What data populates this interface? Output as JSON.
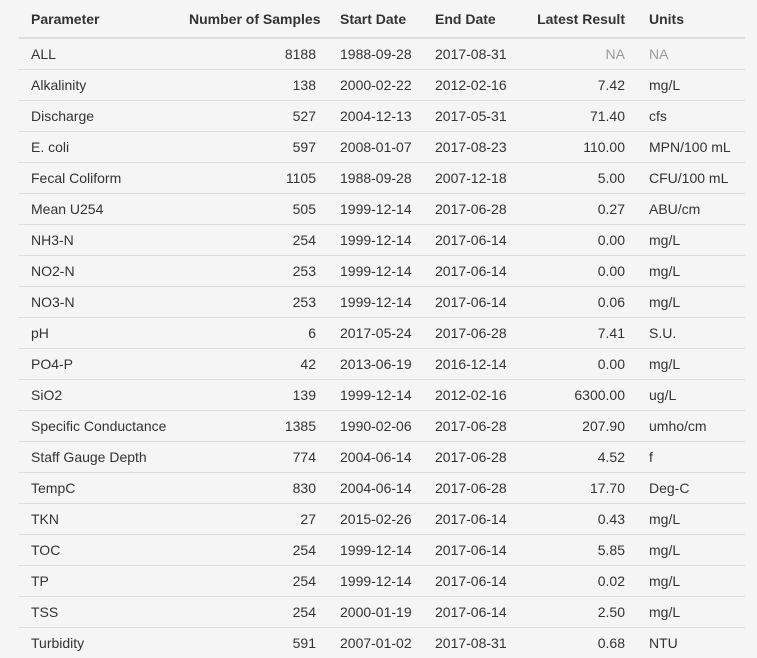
{
  "table": {
    "headers": {
      "parameter": "Parameter",
      "samples": "Number of Samples",
      "start": "Start Date",
      "end": "End Date",
      "latest": "Latest Result",
      "units": "Units"
    },
    "rows": [
      {
        "parameter": "ALL",
        "samples": "8188",
        "start": "1988-09-28",
        "end": "2017-08-31",
        "latest": "NA",
        "units": "NA"
      },
      {
        "parameter": "Alkalinity",
        "samples": "138",
        "start": "2000-02-22",
        "end": "2012-02-16",
        "latest": "7.42",
        "units": "mg/L"
      },
      {
        "parameter": "Discharge",
        "samples": "527",
        "start": "2004-12-13",
        "end": "2017-05-31",
        "latest": "71.40",
        "units": "cfs"
      },
      {
        "parameter": "E. coli",
        "samples": "597",
        "start": "2008-01-07",
        "end": "2017-08-23",
        "latest": "110.00",
        "units": "MPN/100 mL"
      },
      {
        "parameter": "Fecal Coliform",
        "samples": "1105",
        "start": "1988-09-28",
        "end": "2007-12-18",
        "latest": "5.00",
        "units": "CFU/100 mL"
      },
      {
        "parameter": "Mean U254",
        "samples": "505",
        "start": "1999-12-14",
        "end": "2017-06-28",
        "latest": "0.27",
        "units": "ABU/cm"
      },
      {
        "parameter": "NH3-N",
        "samples": "254",
        "start": "1999-12-14",
        "end": "2017-06-14",
        "latest": "0.00",
        "units": "mg/L"
      },
      {
        "parameter": "NO2-N",
        "samples": "253",
        "start": "1999-12-14",
        "end": "2017-06-14",
        "latest": "0.00",
        "units": "mg/L"
      },
      {
        "parameter": "NO3-N",
        "samples": "253",
        "start": "1999-12-14",
        "end": "2017-06-14",
        "latest": "0.06",
        "units": "mg/L"
      },
      {
        "parameter": "pH",
        "samples": "6",
        "start": "2017-05-24",
        "end": "2017-06-28",
        "latest": "7.41",
        "units": "S.U."
      },
      {
        "parameter": "PO4-P",
        "samples": "42",
        "start": "2013-06-19",
        "end": "2016-12-14",
        "latest": "0.00",
        "units": "mg/L"
      },
      {
        "parameter": "SiO2",
        "samples": "139",
        "start": "1999-12-14",
        "end": "2012-02-16",
        "latest": "6300.00",
        "units": "ug/L"
      },
      {
        "parameter": "Specific Conductance",
        "samples": "1385",
        "start": "1990-02-06",
        "end": "2017-06-28",
        "latest": "207.90",
        "units": "umho/cm"
      },
      {
        "parameter": "Staff Gauge Depth",
        "samples": "774",
        "start": "2004-06-14",
        "end": "2017-06-28",
        "latest": "4.52",
        "units": "f"
      },
      {
        "parameter": "TempC",
        "samples": "830",
        "start": "2004-06-14",
        "end": "2017-06-28",
        "latest": "17.70",
        "units": "Deg-C"
      },
      {
        "parameter": "TKN",
        "samples": "27",
        "start": "2015-02-26",
        "end": "2017-06-14",
        "latest": "0.43",
        "units": "mg/L"
      },
      {
        "parameter": "TOC",
        "samples": "254",
        "start": "1999-12-14",
        "end": "2017-06-14",
        "latest": "5.85",
        "units": "mg/L"
      },
      {
        "parameter": "TP",
        "samples": "254",
        "start": "1999-12-14",
        "end": "2017-06-14",
        "latest": "0.02",
        "units": "mg/L"
      },
      {
        "parameter": "TSS",
        "samples": "254",
        "start": "2000-01-19",
        "end": "2017-06-14",
        "latest": "2.50",
        "units": "mg/L"
      },
      {
        "parameter": "Turbidity",
        "samples": "591",
        "start": "2007-01-02",
        "end": "2017-08-31",
        "latest": "0.68",
        "units": "NTU"
      }
    ]
  }
}
